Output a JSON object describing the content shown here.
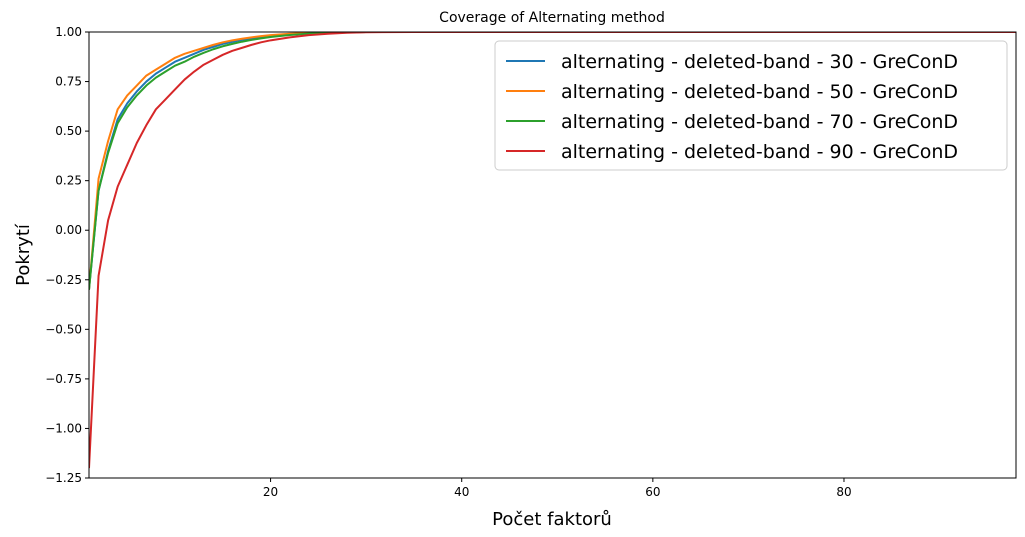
{
  "chart_data": {
    "type": "line",
    "title": "Coverage of Alternating method",
    "xlabel": "Počet faktorů",
    "ylabel": "Pokrytí",
    "xlim": [
      1,
      98
    ],
    "ylim": [
      -1.25,
      1.0
    ],
    "xticks": [
      20,
      40,
      60,
      80
    ],
    "yticks": [
      -1.25,
      -1.0,
      -0.75,
      -0.5,
      -0.25,
      0.0,
      0.25,
      0.5,
      0.75,
      1.0
    ],
    "xtick_labels": [
      "20",
      "40",
      "60",
      "80"
    ],
    "ytick_labels": [
      "−1.25",
      "−1.00",
      "−0.75",
      "−0.50",
      "−0.25",
      "0.00",
      "0.25",
      "0.50",
      "0.75",
      "1.00"
    ],
    "grid": false,
    "legend_position": "top-right",
    "series": [
      {
        "name": "alternating - deleted-band - 30 - GreConD",
        "color": "#1f77b4",
        "x": [
          1,
          2,
          3,
          4,
          5,
          6,
          7,
          8,
          9,
          10,
          11,
          12,
          13,
          14,
          15,
          16,
          17,
          18,
          19,
          20,
          22,
          24,
          26,
          28,
          30,
          35,
          40,
          50,
          60,
          70,
          80,
          90,
          98
        ],
        "y": [
          -0.3,
          0.2,
          0.4,
          0.56,
          0.64,
          0.7,
          0.75,
          0.79,
          0.82,
          0.85,
          0.87,
          0.89,
          0.91,
          0.925,
          0.94,
          0.95,
          0.96,
          0.967,
          0.974,
          0.98,
          0.988,
          0.994,
          0.997,
          0.999,
          1.0,
          1.0,
          1.0,
          1.0,
          1.0,
          1.0,
          1.0,
          1.0,
          1.0
        ]
      },
      {
        "name": "alternating - deleted-band - 50 - GreConD",
        "color": "#ff7f0e",
        "x": [
          1,
          2,
          3,
          4,
          5,
          6,
          7,
          8,
          9,
          10,
          11,
          12,
          13,
          14,
          15,
          16,
          17,
          18,
          19,
          20,
          22,
          24,
          26,
          28,
          30,
          35,
          40,
          50,
          60,
          70,
          80,
          90,
          98
        ],
        "y": [
          -0.3,
          0.26,
          0.45,
          0.61,
          0.68,
          0.73,
          0.78,
          0.81,
          0.84,
          0.87,
          0.89,
          0.905,
          0.92,
          0.935,
          0.948,
          0.958,
          0.966,
          0.973,
          0.979,
          0.984,
          0.991,
          0.995,
          0.998,
          0.999,
          1.0,
          1.0,
          1.0,
          1.0,
          1.0,
          1.0,
          1.0,
          1.0,
          1.0
        ]
      },
      {
        "name": "alternating - deleted-band - 70 - GreConD",
        "color": "#2ca02c",
        "x": [
          1,
          2,
          3,
          4,
          5,
          6,
          7,
          8,
          9,
          10,
          11,
          12,
          13,
          14,
          15,
          16,
          17,
          18,
          19,
          20,
          22,
          24,
          26,
          28,
          30,
          35,
          40,
          50,
          60,
          70,
          80,
          90,
          98
        ],
        "y": [
          -0.3,
          0.2,
          0.39,
          0.54,
          0.62,
          0.68,
          0.73,
          0.77,
          0.8,
          0.83,
          0.85,
          0.875,
          0.895,
          0.913,
          0.928,
          0.94,
          0.951,
          0.96,
          0.968,
          0.975,
          0.985,
          0.992,
          0.996,
          0.999,
          1.0,
          1.0,
          1.0,
          1.0,
          1.0,
          1.0,
          1.0,
          1.0,
          1.0
        ]
      },
      {
        "name": "alternating - deleted-band - 90 - GreConD",
        "color": "#d62728",
        "x": [
          1,
          2,
          3,
          4,
          5,
          6,
          7,
          8,
          9,
          10,
          11,
          12,
          13,
          14,
          15,
          16,
          17,
          18,
          19,
          20,
          22,
          24,
          26,
          28,
          30,
          35,
          40,
          50,
          60,
          70,
          80,
          90,
          98
        ],
        "y": [
          -1.2,
          -0.23,
          0.05,
          0.22,
          0.33,
          0.44,
          0.53,
          0.61,
          0.66,
          0.71,
          0.76,
          0.8,
          0.835,
          0.86,
          0.885,
          0.905,
          0.92,
          0.935,
          0.948,
          0.958,
          0.973,
          0.984,
          0.991,
          0.996,
          0.999,
          1.0,
          1.0,
          1.0,
          1.0,
          1.0,
          1.0,
          1.0,
          1.0
        ]
      }
    ]
  }
}
